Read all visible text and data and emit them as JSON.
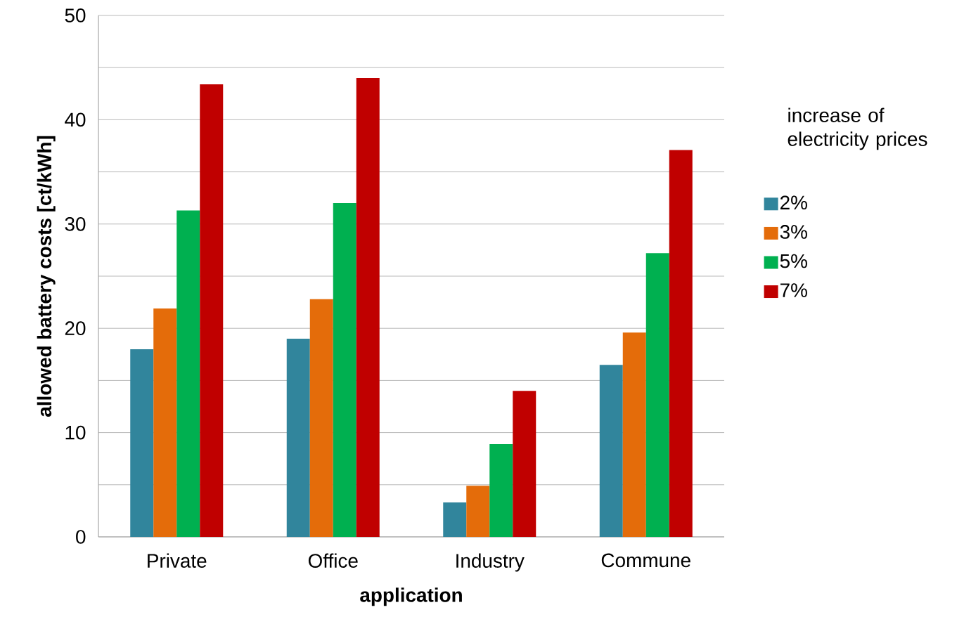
{
  "chart_data": {
    "type": "bar",
    "xlabel": "application",
    "ylabel": "allowed battery costs [ct/kWh]",
    "legend_title": "increase of electricity prices",
    "categories": [
      "Private",
      "Office",
      "Industry",
      "Commune"
    ],
    "series": [
      {
        "name": "2%",
        "color": "#31859c",
        "values": [
          18.0,
          19.0,
          3.3,
          16.5
        ]
      },
      {
        "name": "3%",
        "color": "#e46c0a",
        "values": [
          21.9,
          22.8,
          4.9,
          19.6
        ]
      },
      {
        "name": "5%",
        "color": "#00b050",
        "values": [
          31.3,
          32.0,
          8.9,
          27.2
        ]
      },
      {
        "name": "7%",
        "color": "#c00000",
        "values": [
          43.4,
          44.0,
          14.0,
          37.1
        ]
      }
    ],
    "ylim": [
      0,
      50
    ],
    "yticks": [
      0,
      {
        "value": 5,
        "label": null
      },
      10,
      {
        "value": 15,
        "label": null
      },
      20,
      {
        "value": 25,
        "label": null
      },
      30,
      {
        "value": 35,
        "label": null
      },
      40,
      {
        "value": 45,
        "label": null
      },
      50
    ],
    "grid": "y",
    "legend": "right"
  }
}
